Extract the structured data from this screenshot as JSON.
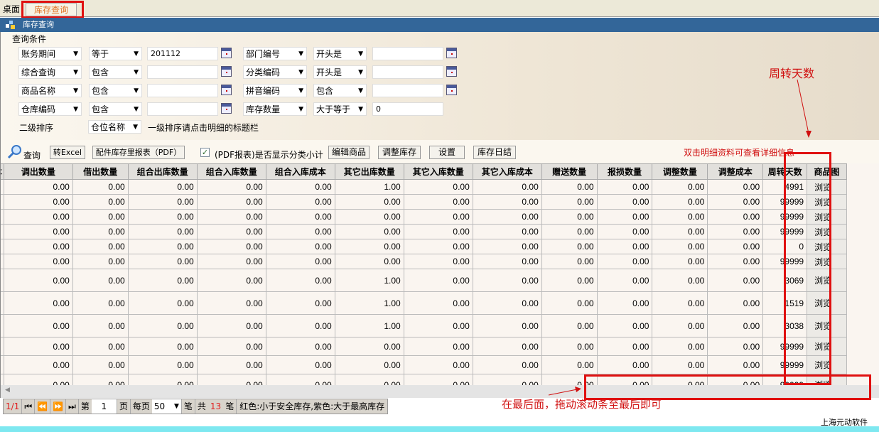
{
  "tabs": [
    {
      "label": "桌面"
    },
    {
      "label": "库存查询"
    }
  ],
  "window_title": "库存查询",
  "query": {
    "group_label": "查询条件",
    "rows": [
      {
        "field": "账务期间",
        "op": "等于",
        "value": "201112",
        "field2": "部门编号",
        "op2": "开头是",
        "value2": ""
      },
      {
        "field": "综合查询",
        "op": "包含",
        "value": "",
        "field2": "分类编码",
        "op2": "开头是",
        "value2": ""
      },
      {
        "field": "商品名称",
        "op": "包含",
        "value": "",
        "field2": "拼音编码",
        "op2": "包含",
        "value2": ""
      },
      {
        "field": "仓库编码",
        "op": "包含",
        "value": "",
        "field2": "库存数量",
        "op2": "大于等于",
        "value2": "0"
      }
    ],
    "sort_label": "二级排序",
    "sort_value": "仓位名称",
    "sort_hint": "一级排序请点击明细的标题栏"
  },
  "toolbar": {
    "query": "查询",
    "excel": "转Excel",
    "pdf": "配件库存里报表（PDF）",
    "pdf_check_label": "(PDF报表)是否显示分类小计",
    "pdf_checked": true,
    "edit": "编辑商品",
    "adjust": "调整库存",
    "settings": "设置",
    "daily": "库存日结"
  },
  "annotations": {
    "turnover": "周转天数",
    "dblclick": "双击明细资料可查看详细信息",
    "scroll": "在最后面，拖动滚动条至最后即可",
    "accent": "#e01010"
  },
  "grid": {
    "columns": [
      "本",
      "调出数量",
      "借出数量",
      "组合出库数量",
      "组合入库数量",
      "组合入库成本",
      "其它出库数量",
      "其它入库数量",
      "其它入库成本",
      "赠送数量",
      "报损数量",
      "调整数量",
      "调整成本",
      "周转天数",
      "商品图"
    ],
    "browse_label": "浏览",
    "other_out": [
      "1.00",
      "0.00",
      "0.00",
      "0.00",
      "0.00",
      "0.00",
      "1.00",
      "1.00",
      "1.00",
      "0.00",
      "0.00",
      "0.00"
    ],
    "turnover_days": [
      "4991",
      "99999",
      "99999",
      "99999",
      "0",
      "99999",
      "3069",
      "1519",
      "3038",
      "99999",
      "99999",
      "99999"
    ],
    "zero": "0.00",
    "partial": ".00"
  },
  "pager": {
    "page_info": "1/1",
    "page_label": "第",
    "page": "1",
    "page_unit": "页",
    "per_page_label": "每页",
    "per_page": "50",
    "per_unit": "笔",
    "total_label": "共",
    "total": "13",
    "total_unit": "笔",
    "legend": "红色:小于安全库存,紫色:大于最高库存"
  },
  "footer": "上海元动软件"
}
